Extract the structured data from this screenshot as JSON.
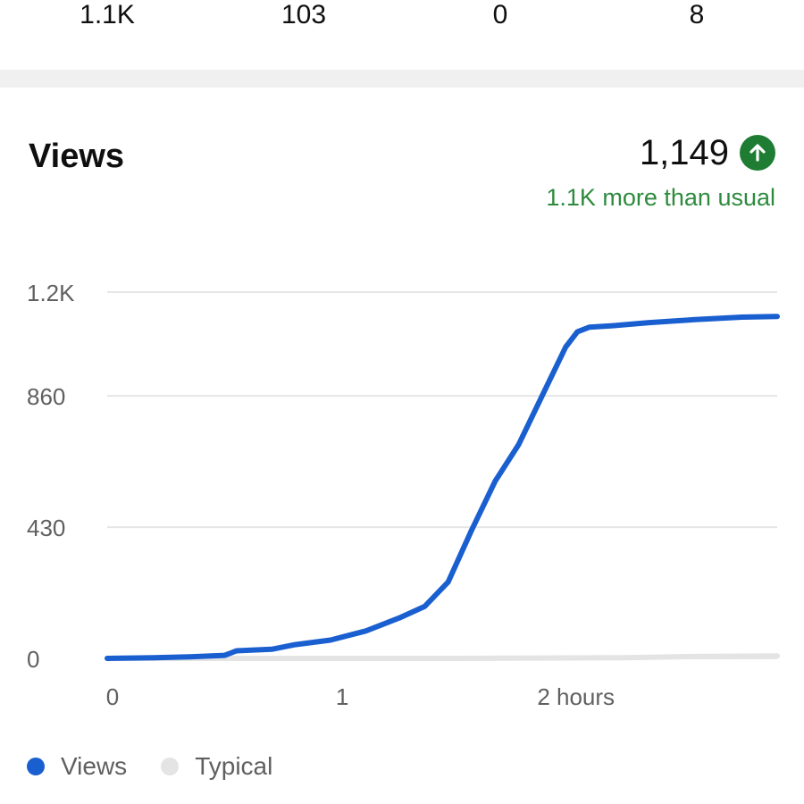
{
  "summary_stats": {
    "values": [
      "1.1K",
      "103",
      "0",
      "8"
    ]
  },
  "views_card": {
    "title": "Views",
    "total": "1,149",
    "trend_icon": "arrow-up-circle-icon",
    "comparison": "1.1K more than usual"
  },
  "colors": {
    "views_line": "#1a5fd0",
    "typical_line": "#e4e4e4",
    "positive": "#1e7d32",
    "grid": "#e6e6e6"
  },
  "chart_data": {
    "type": "line",
    "xlim": [
      0,
      2.85
    ],
    "ylim": [
      0,
      1200
    ],
    "y_ticks": [
      {
        "value": 0,
        "label": "0"
      },
      {
        "value": 430,
        "label": "430"
      },
      {
        "value": 860,
        "label": "860"
      },
      {
        "value": 1200,
        "label": "1.2K"
      }
    ],
    "x_ticks": [
      {
        "value": 0,
        "label": "0"
      },
      {
        "value": 1,
        "label": "1"
      },
      {
        "value": 2,
        "label": "2 hours"
      }
    ],
    "legend_position": "bottom-left",
    "series": [
      {
        "name": "Views",
        "x": [
          0,
          0.2,
          0.35,
          0.5,
          0.55,
          0.7,
          0.8,
          0.95,
          1.1,
          1.25,
          1.35,
          1.45,
          1.55,
          1.65,
          1.75,
          1.85,
          1.95,
          2.0,
          2.05,
          2.15,
          2.3,
          2.5,
          2.7,
          2.85
        ],
        "y": [
          0,
          2,
          5,
          10,
          25,
          30,
          45,
          60,
          90,
          135,
          170,
          250,
          420,
          580,
          700,
          860,
          1020,
          1070,
          1085,
          1090,
          1100,
          1110,
          1118,
          1120
        ]
      },
      {
        "name": "Typical",
        "x": [
          0,
          1.5,
          2.2,
          2.5,
          2.85
        ],
        "y": [
          0,
          0,
          2,
          6,
          8
        ]
      }
    ]
  }
}
